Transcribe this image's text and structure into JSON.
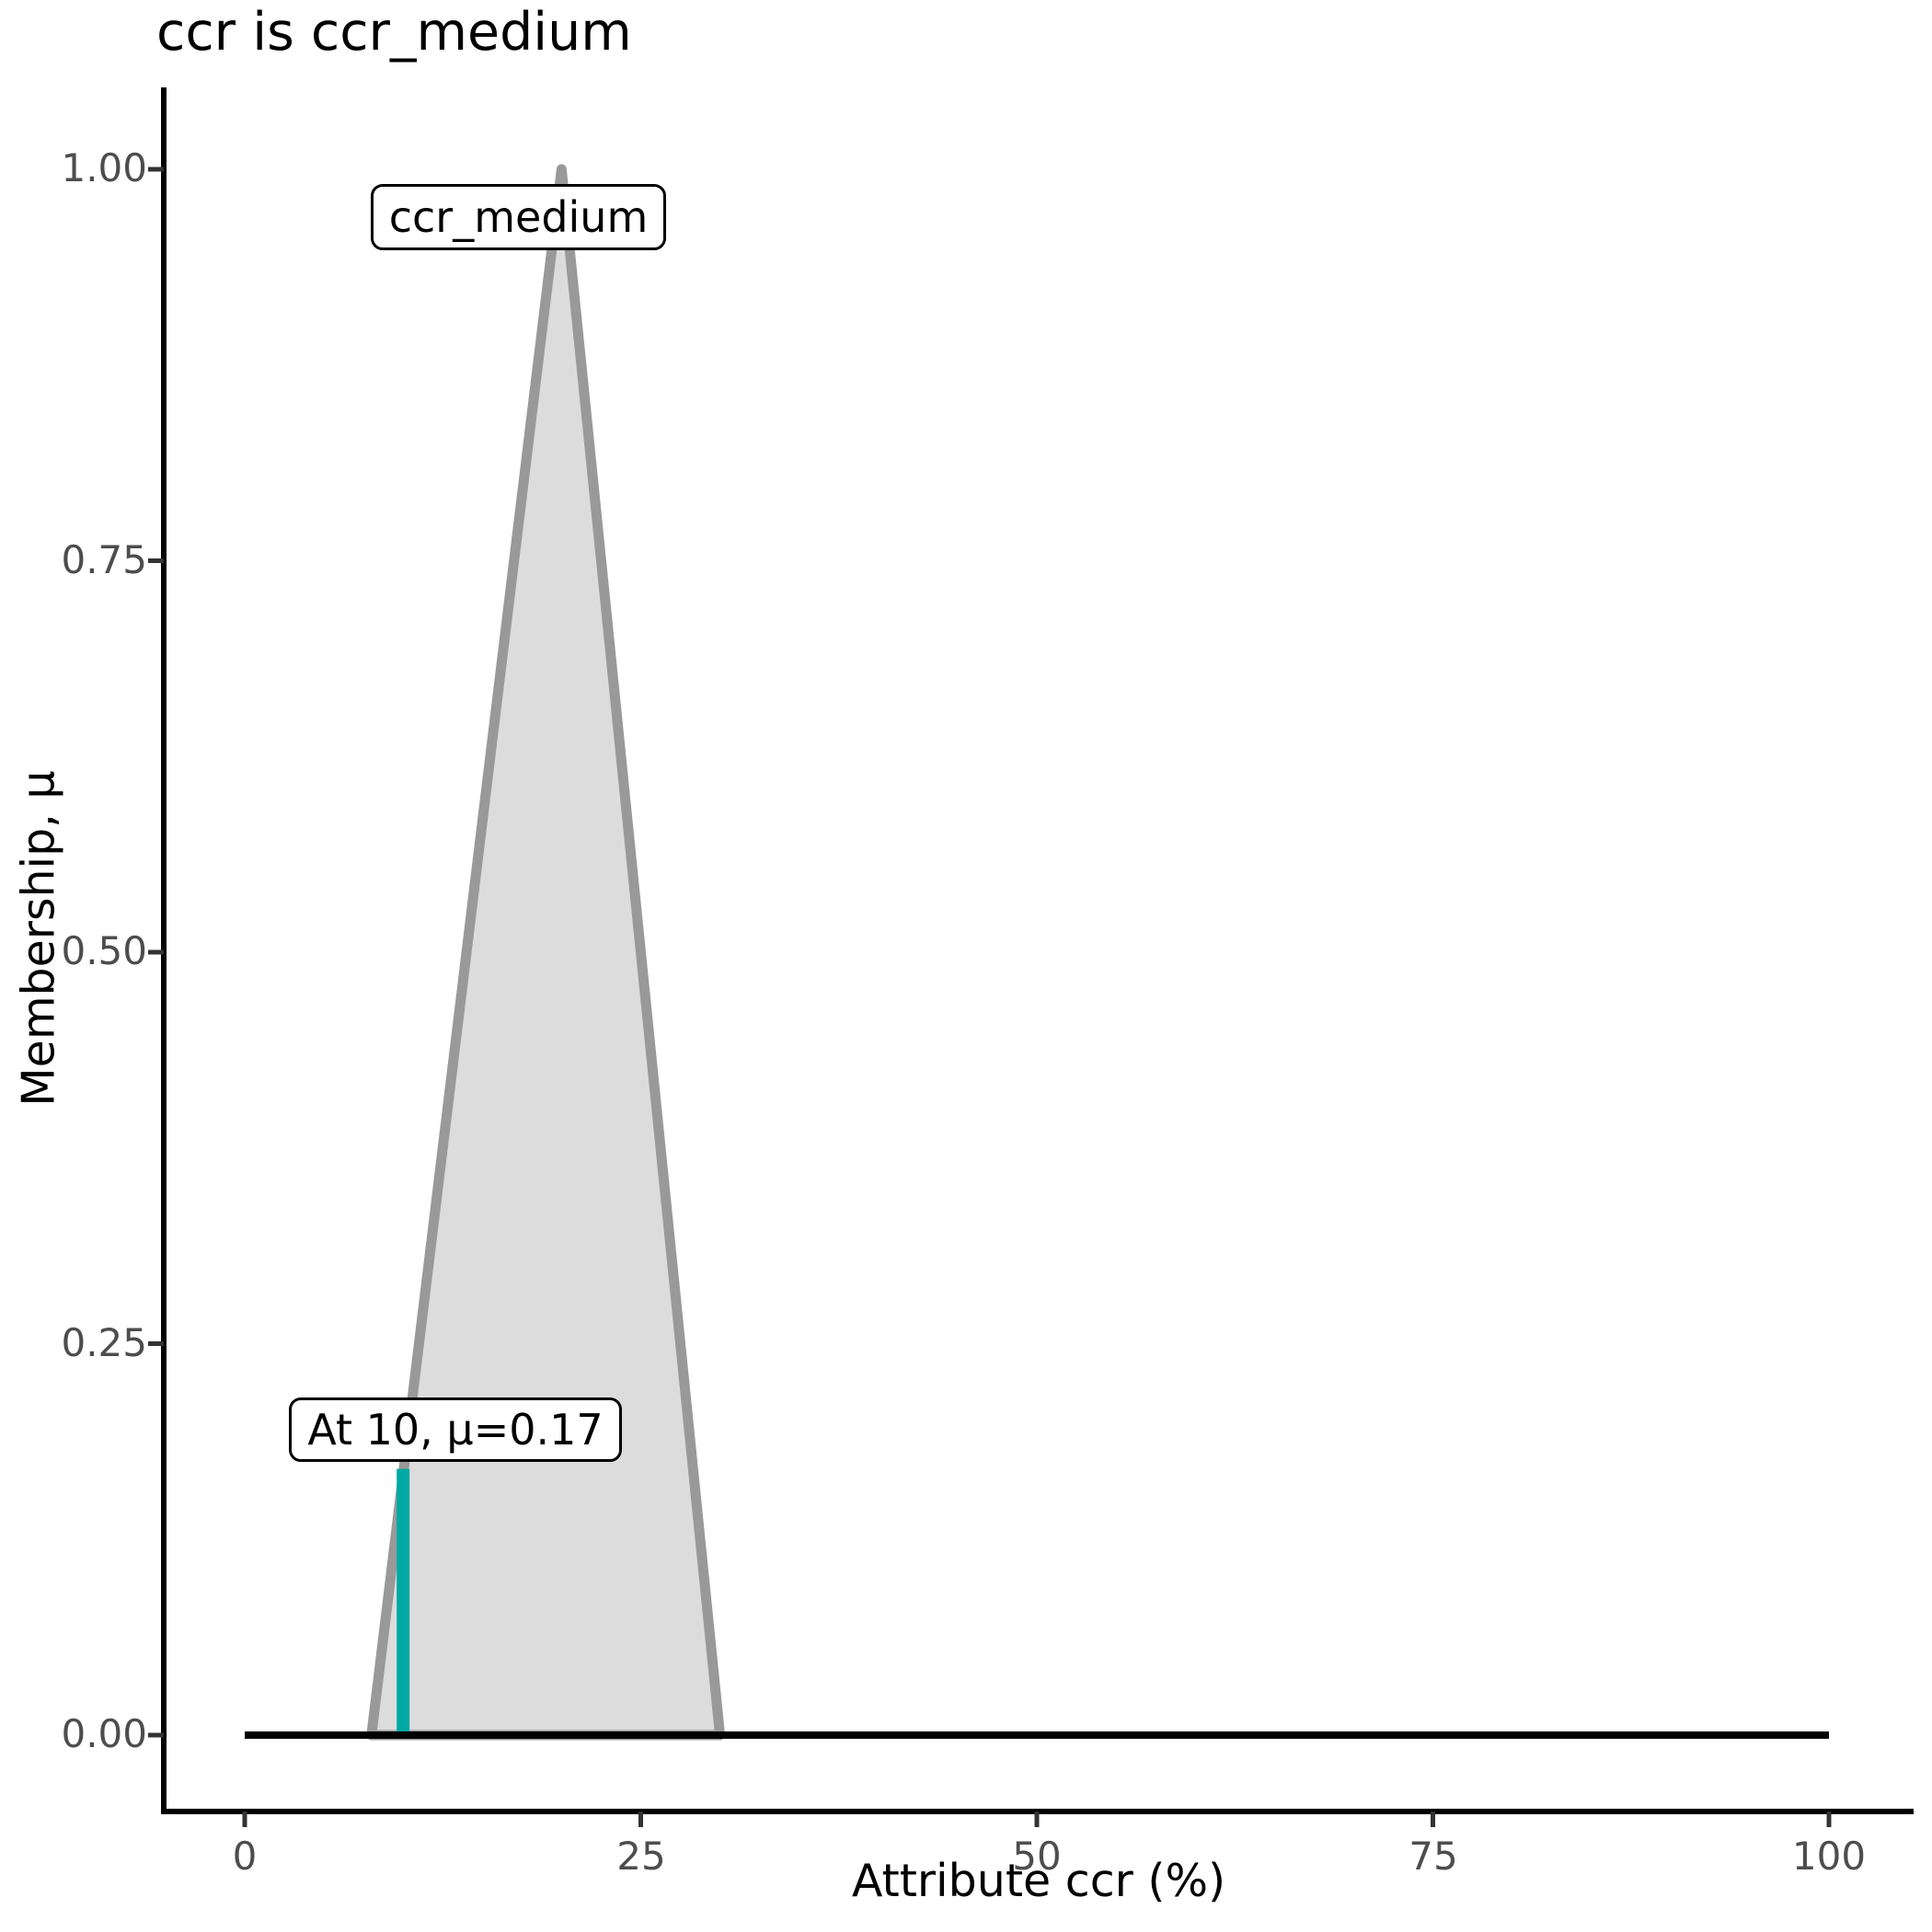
{
  "chart_data": {
    "type": "area",
    "title": "ccr is ccr_medium",
    "xlabel": "Attribute ccr (%)",
    "ylabel": "Membership, μ",
    "xlim": [
      0,
      100
    ],
    "ylim": [
      0,
      1
    ],
    "grid": false,
    "x_ticks": {
      "values": [
        0,
        25,
        50,
        75,
        100
      ],
      "labels": [
        "0",
        "25",
        "50",
        "75",
        "100"
      ]
    },
    "y_ticks": {
      "values": [
        1.0,
        0.75,
        0.5,
        0.25,
        0.0
      ],
      "labels": [
        "1.00",
        "0.75",
        "0.50",
        "0.25",
        "0.00"
      ]
    },
    "membership_function": {
      "name": "ccr_medium",
      "shape": "triangular",
      "vertices": [
        [
          8,
          0
        ],
        [
          20,
          1
        ],
        [
          30,
          0
        ]
      ],
      "fill": "#dcdcdc",
      "stroke": "#999999"
    },
    "baseline": {
      "from": 0,
      "to": 100,
      "mu": 0,
      "color": "#000000"
    },
    "query": {
      "x": 10,
      "mu": 0.17,
      "color": "#00a9a2",
      "label": "At 10, μ=0.17"
    },
    "set_label": "ccr_medium",
    "colors": {
      "axis": "#000000",
      "tick_mark": "#333333",
      "tick_label": "#4d4d4d",
      "background": "#ffffff"
    }
  }
}
